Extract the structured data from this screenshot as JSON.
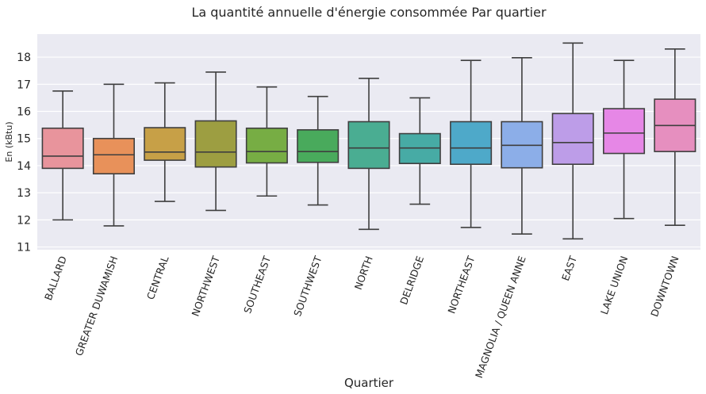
{
  "chart_data": {
    "type": "box",
    "title": "La quantité annuelle d'énergie consommée Par quartier",
    "xlabel": "Quartier",
    "ylabel": "En (kBtu)",
    "ylim": [
      10.9,
      18.85
    ],
    "yticks": [
      11,
      12,
      13,
      14,
      15,
      16,
      17,
      18
    ],
    "grid": true,
    "categories": [
      "BALLARD",
      "GREATER DUWAMISH",
      "CENTRAL",
      "NORTHWEST",
      "SOUTHEAST",
      "SOUTHWEST",
      "NORTH",
      "DELRIDGE",
      "NORTHEAST",
      "MAGNOLIA / QUEEN ANNE",
      "EAST",
      "LAKE UNION",
      "DOWNTOWN"
    ],
    "colors": [
      "#e8949c",
      "#e8915a",
      "#c7a047",
      "#9d9e41",
      "#77ad44",
      "#49aa5c",
      "#4aad92",
      "#47aba5",
      "#4ea9c9",
      "#8caee8",
      "#bd9de8",
      "#e687e6",
      "#e68fbf"
    ],
    "boxes": [
      {
        "whisker_low": 12.0,
        "q1": 13.9,
        "median": 14.35,
        "q3": 15.38,
        "whisker_high": 16.75
      },
      {
        "whisker_low": 11.78,
        "q1": 13.7,
        "median": 14.4,
        "q3": 15.0,
        "whisker_high": 17.0
      },
      {
        "whisker_low": 12.68,
        "q1": 14.2,
        "median": 14.5,
        "q3": 15.4,
        "whisker_high": 17.05
      },
      {
        "whisker_low": 12.35,
        "q1": 13.95,
        "median": 14.5,
        "q3": 15.65,
        "whisker_high": 17.45
      },
      {
        "whisker_low": 12.88,
        "q1": 14.1,
        "median": 14.52,
        "q3": 15.38,
        "whisker_high": 16.9
      },
      {
        "whisker_low": 12.55,
        "q1": 14.12,
        "median": 14.52,
        "q3": 15.32,
        "whisker_high": 16.55
      },
      {
        "whisker_low": 11.65,
        "q1": 13.9,
        "median": 14.65,
        "q3": 15.62,
        "whisker_high": 17.22
      },
      {
        "whisker_low": 12.58,
        "q1": 14.08,
        "median": 14.65,
        "q3": 15.18,
        "whisker_high": 16.5
      },
      {
        "whisker_low": 11.72,
        "q1": 14.05,
        "median": 14.65,
        "q3": 15.62,
        "whisker_high": 17.88
      },
      {
        "whisker_low": 11.48,
        "q1": 13.92,
        "median": 14.75,
        "q3": 15.62,
        "whisker_high": 17.98
      },
      {
        "whisker_low": 11.3,
        "q1": 14.05,
        "median": 14.85,
        "q3": 15.92,
        "whisker_high": 18.52
      },
      {
        "whisker_low": 12.05,
        "q1": 14.45,
        "median": 15.2,
        "q3": 16.1,
        "whisker_high": 17.88
      },
      {
        "whisker_low": 11.8,
        "q1": 14.52,
        "median": 15.48,
        "q3": 16.45,
        "whisker_high": 18.3
      }
    ]
  }
}
